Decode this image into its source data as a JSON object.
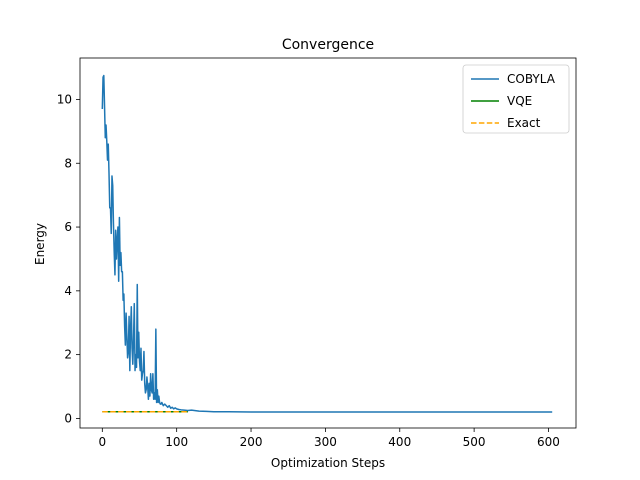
{
  "chart_data": {
    "type": "line",
    "title": "Convergence",
    "xlabel": "Optimization Steps",
    "ylabel": "Energy",
    "xlim": [
      -30,
      637
    ],
    "ylim": [
      -0.3,
      11.3
    ],
    "xticks": [
      0,
      100,
      200,
      300,
      400,
      500,
      600
    ],
    "yticks": [
      0,
      2,
      4,
      6,
      8,
      10
    ],
    "legend_position": "top-right",
    "series": [
      {
        "name": "COBYLA",
        "color": "#1f77b4",
        "style": "solid",
        "x": [
          0,
          1,
          2,
          3,
          4,
          5,
          6,
          7,
          8,
          9,
          10,
          11,
          12,
          13,
          14,
          15,
          16,
          17,
          18,
          19,
          20,
          21,
          22,
          23,
          24,
          25,
          26,
          27,
          28,
          29,
          30,
          31,
          32,
          33,
          34,
          35,
          36,
          37,
          38,
          39,
          40,
          41,
          42,
          43,
          44,
          45,
          46,
          47,
          48,
          49,
          50,
          51,
          52,
          53,
          54,
          55,
          56,
          57,
          58,
          59,
          60,
          61,
          62,
          63,
          64,
          65,
          66,
          67,
          68,
          69,
          70,
          71,
          72,
          73,
          74,
          75,
          76,
          77,
          78,
          79,
          80,
          82,
          84,
          86,
          88,
          90,
          92,
          94,
          96,
          98,
          100,
          103,
          106,
          110,
          115,
          120,
          130,
          140,
          150,
          170,
          200,
          250,
          300,
          400,
          500,
          605
        ],
        "y": [
          9.7,
          10.7,
          10.75,
          9.8,
          8.8,
          9.2,
          8.7,
          8.1,
          8.6,
          7.7,
          6.6,
          6.6,
          5.8,
          7.6,
          7.3,
          6.1,
          5.2,
          4.5,
          5.9,
          5.0,
          5.6,
          6.0,
          4.3,
          6.3,
          4.8,
          5.2,
          4.6,
          4.6,
          3.7,
          3.9,
          2.9,
          2.3,
          3.3,
          2.6,
          1.9,
          2.1,
          3.2,
          1.5,
          2.8,
          3.5,
          2.2,
          1.7,
          2.5,
          3.6,
          1.5,
          2.0,
          1.6,
          4.2,
          1.9,
          2.7,
          1.8,
          1.5,
          2.2,
          1.2,
          1.4,
          1.5,
          2.1,
          1.1,
          0.8,
          0.9,
          1.3,
          1.0,
          0.6,
          1.1,
          0.7,
          1.4,
          0.9,
          0.8,
          1.4,
          0.6,
          0.8,
          0.6,
          2.8,
          0.5,
          0.9,
          0.5,
          0.7,
          0.5,
          0.45,
          0.45,
          0.5,
          0.4,
          0.45,
          0.4,
          0.35,
          0.4,
          0.32,
          0.35,
          0.3,
          0.33,
          0.3,
          0.28,
          0.27,
          0.26,
          0.25,
          0.26,
          0.23,
          0.22,
          0.21,
          0.21,
          0.2,
          0.2,
          0.2,
          0.2,
          0.2,
          0.2
        ]
      },
      {
        "name": "VQE",
        "color": "#008000",
        "style": "solid",
        "x": [
          0,
          115
        ],
        "y": [
          0.21,
          0.21
        ]
      },
      {
        "name": "Exact",
        "color": "#ffa500",
        "style": "dashed",
        "x": [
          0,
          115
        ],
        "y": [
          0.21,
          0.21
        ]
      }
    ]
  }
}
